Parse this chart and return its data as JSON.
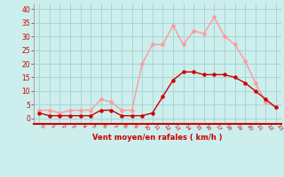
{
  "hours": [
    0,
    1,
    2,
    3,
    4,
    5,
    6,
    7,
    8,
    9,
    10,
    11,
    12,
    13,
    14,
    15,
    16,
    17,
    18,
    19,
    20,
    21,
    22,
    23
  ],
  "vent_moyen": [
    2,
    1,
    1,
    1,
    1,
    1,
    3,
    3,
    1,
    1,
    1,
    2,
    8,
    14,
    17,
    17,
    16,
    16,
    16,
    15,
    13,
    10,
    7,
    4
  ],
  "vent_rafales": [
    3,
    3,
    2,
    3,
    3,
    3,
    7,
    6,
    3,
    3,
    20,
    27,
    27,
    34,
    27,
    32,
    31,
    37,
    30,
    27,
    21,
    13,
    6,
    4
  ],
  "xlabel": "Vent moyen/en rafales ( km/h )",
  "ylim": [
    -2,
    42
  ],
  "xlim": [
    -0.5,
    23.5
  ],
  "yticks": [
    0,
    5,
    10,
    15,
    20,
    25,
    30,
    35,
    40
  ],
  "xticks": [
    0,
    1,
    2,
    3,
    4,
    5,
    6,
    7,
    8,
    9,
    10,
    11,
    12,
    13,
    14,
    15,
    16,
    17,
    18,
    19,
    20,
    21,
    22,
    23
  ],
  "bg_color": "#cceeed",
  "grid_color": "#aad4d3",
  "moyen_color": "#cc0000",
  "rafales_color": "#ff9999",
  "line_width": 1.0,
  "marker_size": 2.2
}
